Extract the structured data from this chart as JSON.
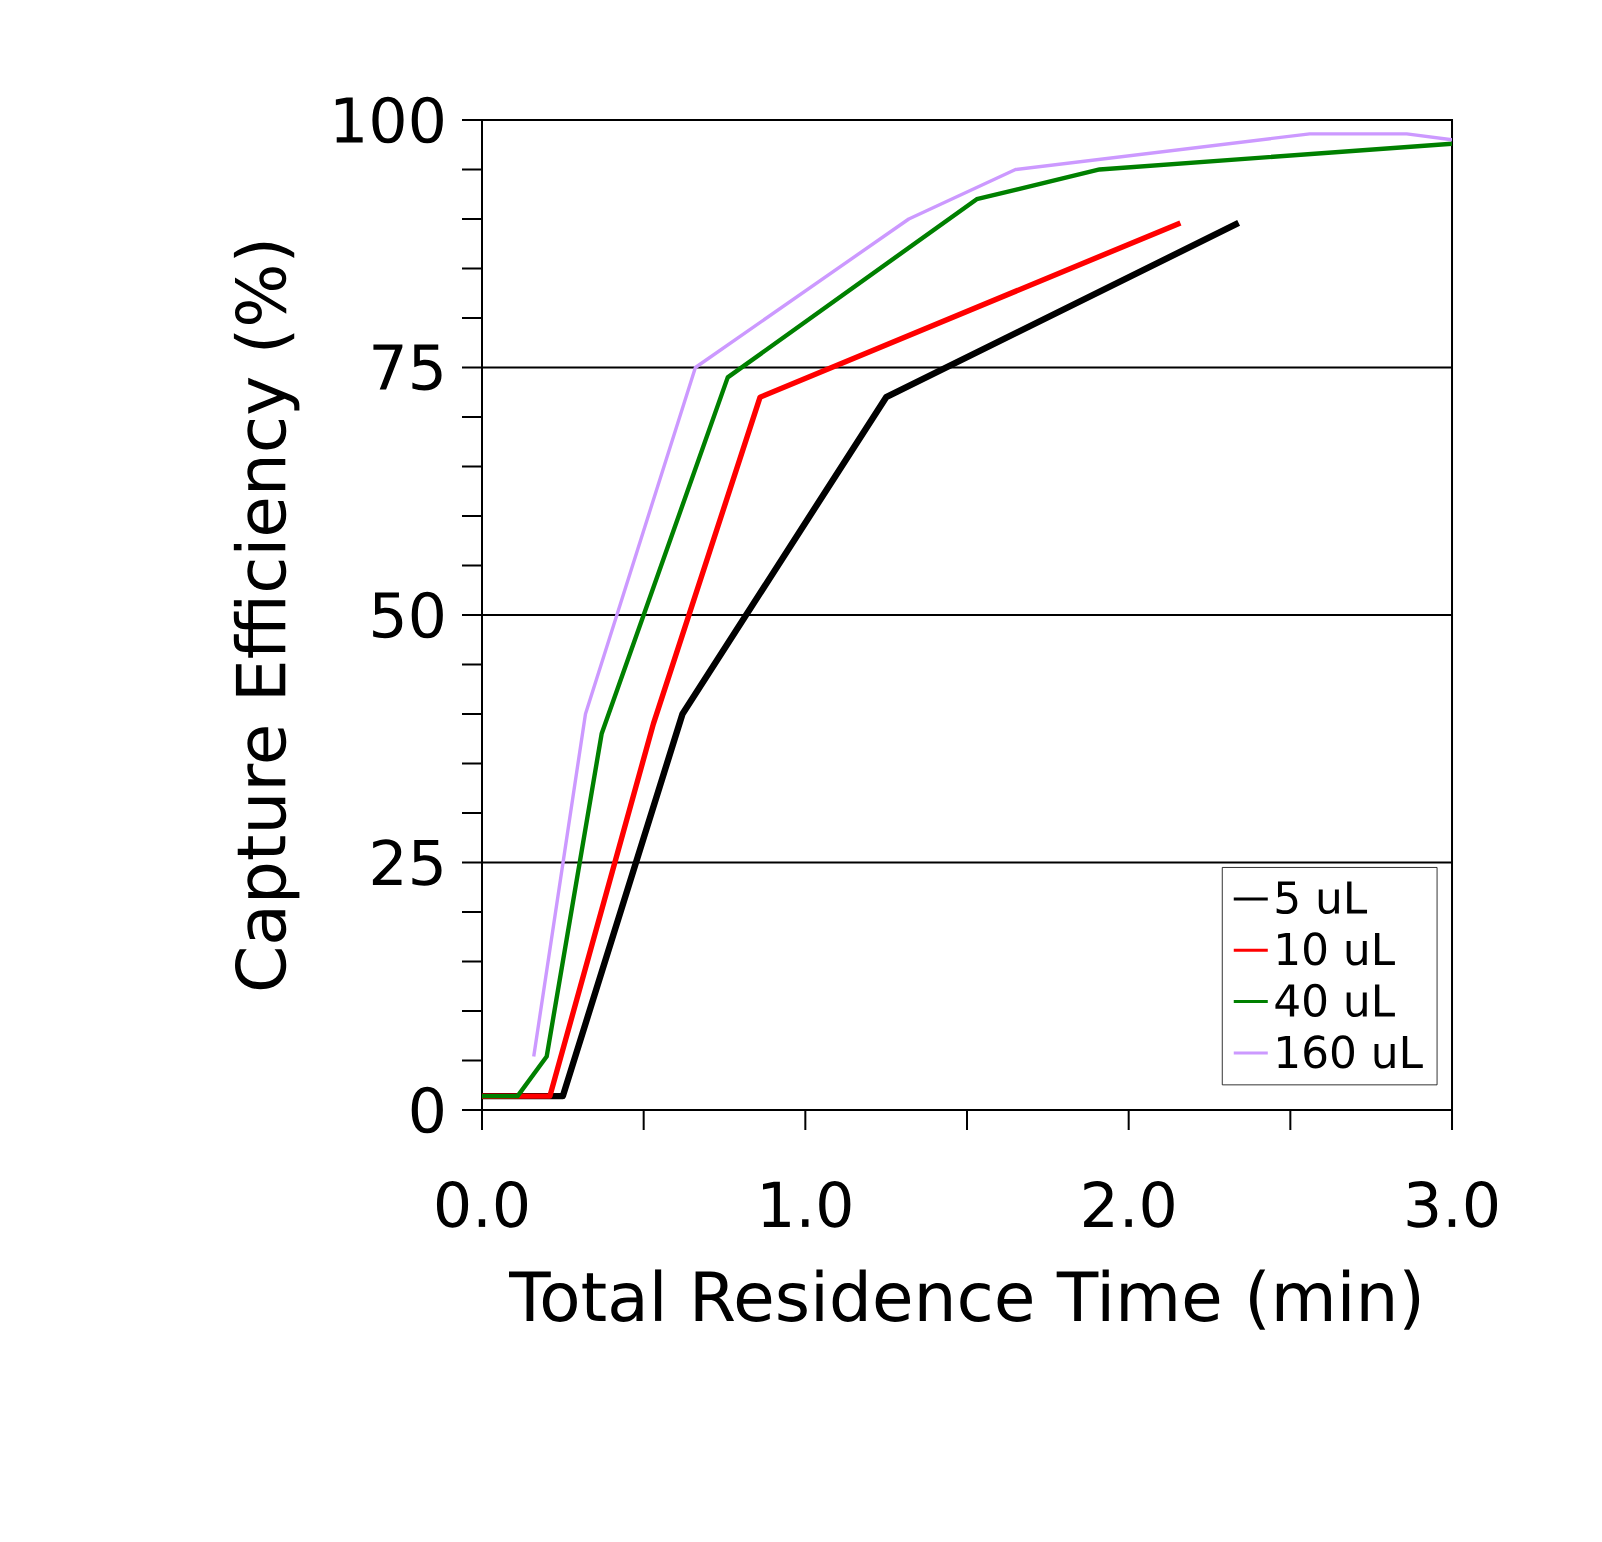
{
  "chart_data": {
    "type": "line",
    "xlabel": "Total Residence Time (min)",
    "ylabel": "Capture Efficiency (%)",
    "xlim": [
      0,
      3
    ],
    "ylim": [
      0,
      100
    ],
    "xticks": [
      {
        "value": 0,
        "label": "0.0"
      },
      {
        "value": 0.5,
        "label": null
      },
      {
        "value": 1,
        "label": "1.0"
      },
      {
        "value": 1.5,
        "label": null
      },
      {
        "value": 2,
        "label": "2.0"
      },
      {
        "value": 2.5,
        "label": null
      },
      {
        "value": 3,
        "label": "3.0"
      }
    ],
    "yticks": [
      0,
      25,
      50,
      75,
      100
    ],
    "grid": "y",
    "legend": "bottom right",
    "marker": "none",
    "line_style": "solid",
    "series": [
      {
        "name": "5 uL",
        "color": "#000000",
        "x": [
          0,
          0.25,
          0.62,
          1.25,
          2.34
        ],
        "values": [
          1.4,
          1.4,
          40,
          72,
          89.6
        ]
      },
      {
        "name": "10 uL",
        "color": "#ff0000",
        "x": [
          0,
          0.21,
          0.53,
          0.86,
          2.16
        ],
        "values": [
          1.4,
          1.4,
          39,
          72,
          89.6
        ]
      },
      {
        "name": "40 uL",
        "color": "#008000",
        "x": [
          0,
          0.11,
          0.2,
          0.37,
          0.76,
          1.53,
          1.91,
          3.0
        ],
        "values": [
          1.4,
          1.4,
          5.4,
          38,
          74,
          92,
          95,
          97.6
        ]
      },
      {
        "name": "160 uL",
        "color": "#cc99ff",
        "x": [
          0.16,
          0.32,
          0.66,
          1.32,
          1.65,
          2.56,
          2.86,
          3.0
        ],
        "values": [
          5.4,
          40,
          75,
          90,
          95,
          98.6,
          98.6,
          98
        ]
      }
    ]
  }
}
